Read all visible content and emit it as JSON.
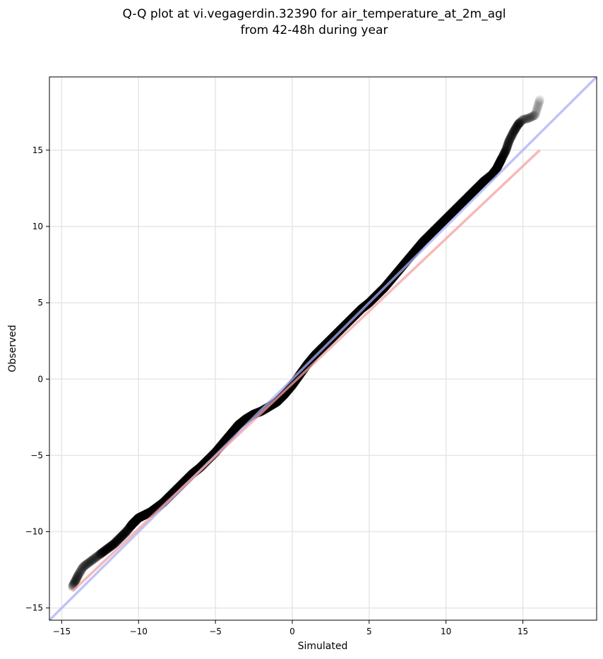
{
  "chart_data": {
    "type": "scatter",
    "title": "Q-Q plot at vi.vegagerdin.32390 for air_temperature_at_2m_agl",
    "subtitle": "from 42-48h during year",
    "xlabel": "Simulated",
    "ylabel": "Observed",
    "xlim": [
      -15.8,
      19.8
    ],
    "ylim": [
      -15.8,
      19.8
    ],
    "xticks": [
      -15,
      -10,
      -5,
      0,
      5,
      10,
      15
    ],
    "yticks": [
      -15,
      -10,
      -5,
      0,
      5,
      10,
      15
    ],
    "grid": true,
    "legend": "none",
    "quantile_curve": {
      "x": [
        -14.3,
        -14.1,
        -13.9,
        -13.6,
        -13.2,
        -12.8,
        -12.4,
        -12.0,
        -11.6,
        -11.2,
        -10.8,
        -10.4,
        -10.0,
        -9.6,
        -9.2,
        -8.8,
        -8.4,
        -8.0,
        -7.5,
        -7.0,
        -6.5,
        -6.0,
        -5.5,
        -5.0,
        -4.5,
        -4.0,
        -3.5,
        -3.0,
        -2.5,
        -2.0,
        -1.5,
        -1.0,
        -0.5,
        0.0,
        0.5,
        1.0,
        1.5,
        2.0,
        2.5,
        3.0,
        3.5,
        4.0,
        4.5,
        5.0,
        5.5,
        6.0,
        6.5,
        7.0,
        7.5,
        8.0,
        8.5,
        9.0,
        9.5,
        10.0,
        10.5,
        11.0,
        11.5,
        12.0,
        12.5,
        13.0,
        13.3,
        13.5,
        13.7,
        13.9,
        14.1,
        14.4,
        14.7,
        15.0,
        15.4,
        15.8,
        16.1
      ],
      "y": [
        -13.6,
        -13.2,
        -12.8,
        -12.3,
        -12.0,
        -11.7,
        -11.4,
        -11.1,
        -10.8,
        -10.4,
        -10.0,
        -9.5,
        -9.1,
        -8.9,
        -8.7,
        -8.4,
        -8.1,
        -7.7,
        -7.2,
        -6.7,
        -6.2,
        -5.8,
        -5.3,
        -4.8,
        -4.2,
        -3.6,
        -3.0,
        -2.6,
        -2.3,
        -2.1,
        -1.8,
        -1.5,
        -1.0,
        -0.4,
        0.3,
        1.0,
        1.6,
        2.1,
        2.6,
        3.1,
        3.6,
        4.1,
        4.6,
        5.0,
        5.5,
        6.0,
        6.6,
        7.2,
        7.8,
        8.4,
        9.0,
        9.5,
        10.0,
        10.5,
        11.0,
        11.5,
        12.0,
        12.5,
        13.0,
        13.4,
        13.8,
        14.2,
        14.6,
        15.0,
        15.6,
        16.2,
        16.7,
        17.0,
        17.1,
        17.3,
        18.3
      ]
    },
    "reference_lines": [
      {
        "kind": "identity",
        "color": "#aab0f5",
        "x": [
          -15.8,
          19.8
        ],
        "y": [
          -15.8,
          19.8
        ]
      },
      {
        "kind": "fit",
        "color": "#f5a0a0",
        "x": [
          -14.3,
          16.1
        ],
        "y": [
          -13.9,
          15.0
        ]
      }
    ]
  }
}
